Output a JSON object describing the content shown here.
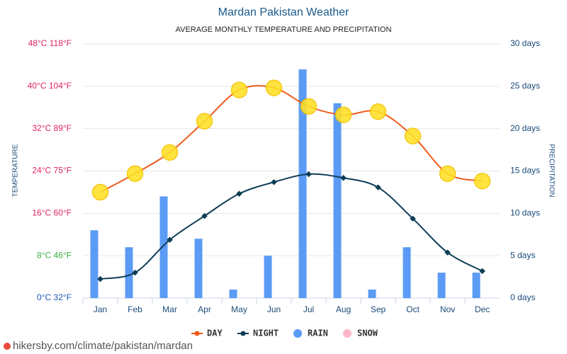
{
  "chart_data": {
    "type": "combo",
    "title": "Mardan Pakistan Weather",
    "subtitle": "AVERAGE MONTHLY TEMPERATURE AND PRECIPITATION",
    "ylabel": "TEMPERATURE",
    "y2label": "PRECIPITATION",
    "categories": [
      "Jan",
      "Feb",
      "Mar",
      "Apr",
      "May",
      "Jun",
      "Jul",
      "Aug",
      "Sep",
      "Oct",
      "Nov",
      "Dec"
    ],
    "series": [
      {
        "name": "DAY",
        "type": "line",
        "color": "#f05a1a",
        "values": [
          20,
          23.5,
          27.5,
          33.4,
          39.3,
          39.7,
          36.2,
          34.6,
          35.2,
          30.6,
          23.5,
          22.1
        ]
      },
      {
        "name": "NIGHT",
        "type": "line",
        "color": "#0d3d56",
        "values": [
          3.6,
          4.8,
          11,
          15.5,
          19.7,
          21.9,
          23.4,
          22.7,
          20.9,
          15,
          8.6,
          5.1
        ]
      },
      {
        "name": "RAIN",
        "type": "bar",
        "axis": "y2",
        "color": "#5b9bf5",
        "values": [
          8,
          6,
          12,
          7,
          1,
          5,
          27,
          23,
          1,
          6,
          3,
          3
        ]
      },
      {
        "name": "SNOW",
        "type": "bar",
        "axis": "y2",
        "color": "#ffb6c8",
        "values": [
          null,
          null,
          null,
          null,
          null,
          null,
          null,
          null,
          null,
          null,
          null,
          null
        ]
      }
    ],
    "ylim": [
      0,
      48
    ],
    "yticks": [
      {
        "value": 0,
        "label": "0°C 32°F"
      },
      {
        "value": 8,
        "label": "8°C 46°F"
      },
      {
        "value": 16,
        "label": "16°C 60°F"
      },
      {
        "value": 24,
        "label": "24°C 75°F"
      },
      {
        "value": 32,
        "label": "32°C 89°F"
      },
      {
        "value": 40,
        "label": "40°C 104°F"
      },
      {
        "value": 48,
        "label": "48°C 118°F"
      }
    ],
    "ytick_colors": [
      "#1f55b5",
      "#3cb043",
      "#e0245e",
      "#e0245e",
      "#e0245e",
      "#e0245e",
      "#e0245e"
    ],
    "y2lim": [
      0,
      30
    ],
    "y2ticks": [
      {
        "value": 0,
        "label": "0 days"
      },
      {
        "value": 5,
        "label": "5 days"
      },
      {
        "value": 10,
        "label": "10 days"
      },
      {
        "value": 15,
        "label": "15 days"
      },
      {
        "value": 20,
        "label": "20 days"
      },
      {
        "value": 25,
        "label": "25 days"
      },
      {
        "value": 30,
        "label": "30 days"
      }
    ],
    "grid": true,
    "source": "hikersby.com/climate/pakistan/mardan"
  }
}
